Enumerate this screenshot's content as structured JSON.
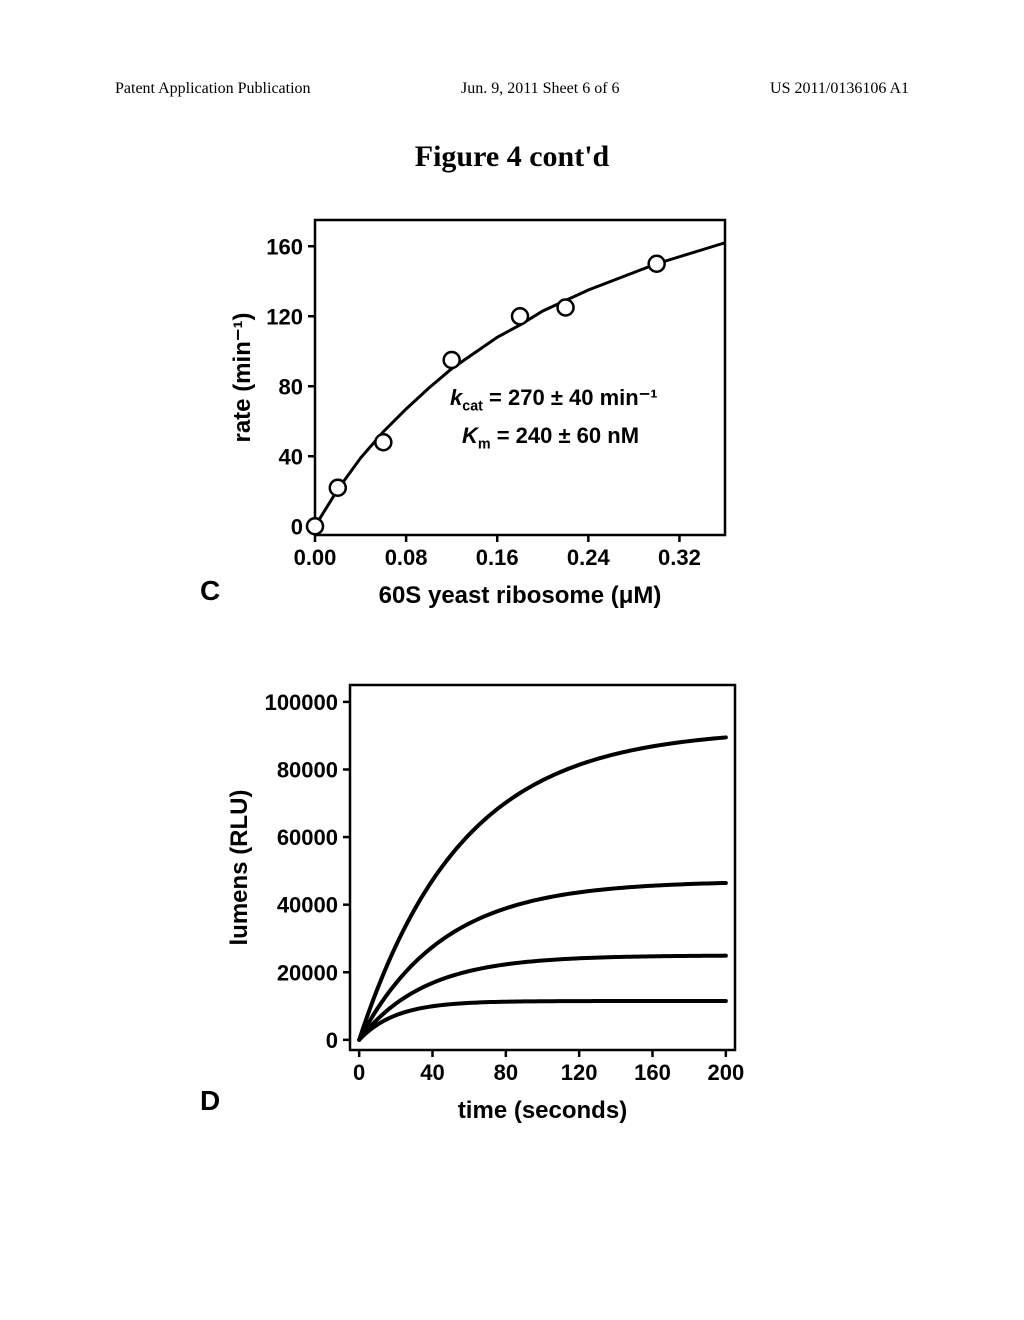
{
  "header": {
    "left": "Patent Application Publication",
    "center": "Jun. 9, 2011   Sheet 6 of 6",
    "right": "US 2011/0136106 A1"
  },
  "figure_title": "Figure 4 cont'd",
  "panels": {
    "c": "C",
    "d": "D"
  },
  "chart_c": {
    "type": "scatter-with-fit",
    "xlabel": "60S yeast ribosome (μM)",
    "ylabel": "rate (min⁻¹)",
    "xlim": [
      0,
      0.36
    ],
    "ylim": [
      -5,
      175
    ],
    "xticks": [
      0.0,
      0.08,
      0.16,
      0.24,
      0.32
    ],
    "xtick_labels": [
      "0.00",
      "0.08",
      "0.16",
      "0.24",
      "0.32"
    ],
    "yticks": [
      0,
      40,
      80,
      120,
      160
    ],
    "ytick_labels": [
      "0",
      "40",
      "80",
      "120",
      "160"
    ],
    "points": [
      {
        "x": 0.0,
        "y": 0
      },
      {
        "x": 0.02,
        "y": 22
      },
      {
        "x": 0.06,
        "y": 48
      },
      {
        "x": 0.12,
        "y": 95
      },
      {
        "x": 0.18,
        "y": 120
      },
      {
        "x": 0.22,
        "y": 125
      },
      {
        "x": 0.3,
        "y": 150
      }
    ],
    "fit_curve": [
      {
        "x": 0.0,
        "y": 0
      },
      {
        "x": 0.02,
        "y": 21
      },
      {
        "x": 0.04,
        "y": 39
      },
      {
        "x": 0.06,
        "y": 54
      },
      {
        "x": 0.08,
        "y": 67
      },
      {
        "x": 0.1,
        "y": 79
      },
      {
        "x": 0.12,
        "y": 90
      },
      {
        "x": 0.14,
        "y": 99
      },
      {
        "x": 0.16,
        "y": 108
      },
      {
        "x": 0.18,
        "y": 115
      },
      {
        "x": 0.2,
        "y": 123
      },
      {
        "x": 0.22,
        "y": 129
      },
      {
        "x": 0.24,
        "y": 135
      },
      {
        "x": 0.26,
        "y": 140
      },
      {
        "x": 0.28,
        "y": 145
      },
      {
        "x": 0.3,
        "y": 150
      },
      {
        "x": 0.32,
        "y": 154
      },
      {
        "x": 0.34,
        "y": 158
      },
      {
        "x": 0.36,
        "y": 162
      }
    ],
    "marker_style": "open-circle",
    "marker_size": 8,
    "marker_stroke_width": 2.5,
    "line_width": 3,
    "axis_color": "#000000",
    "axis_width": 2.5,
    "tick_length": 7,
    "label_fontsize": 24,
    "tick_fontsize": 22,
    "annotation": {
      "kcat_html": "<i>k</i><sub style='font-size:0.65em'>cat</sub> = 270 ± 40 min⁻¹",
      "km_html": "<i>K</i><sub style='font-size:0.65em'>m</sub> = 240 ± 60 nM"
    }
  },
  "chart_d": {
    "type": "line",
    "xlabel": "time (seconds)",
    "ylabel": "lumens (RLU)",
    "xlim": [
      -5,
      205
    ],
    "ylim": [
      -3000,
      105000
    ],
    "xticks": [
      0,
      40,
      80,
      120,
      160,
      200
    ],
    "xtick_labels": [
      "0",
      "40",
      "80",
      "120",
      "160",
      "200"
    ],
    "yticks": [
      0,
      20000,
      40000,
      60000,
      80000,
      100000
    ],
    "ytick_labels": [
      "0",
      "20000",
      "40000",
      "60000",
      "80000",
      "100000"
    ],
    "series": [
      {
        "name": "s1",
        "plateau": 92000,
        "rate": 0.018
      },
      {
        "name": "s2",
        "plateau": 47000,
        "rate": 0.022
      },
      {
        "name": "s3",
        "plateau": 25000,
        "rate": 0.028
      },
      {
        "name": "s4",
        "plateau": 11500,
        "rate": 0.05
      }
    ],
    "line_width": 4,
    "line_color": "#000000",
    "axis_color": "#000000",
    "axis_width": 2.5,
    "tick_length": 7,
    "label_fontsize": 24,
    "tick_fontsize": 22
  }
}
